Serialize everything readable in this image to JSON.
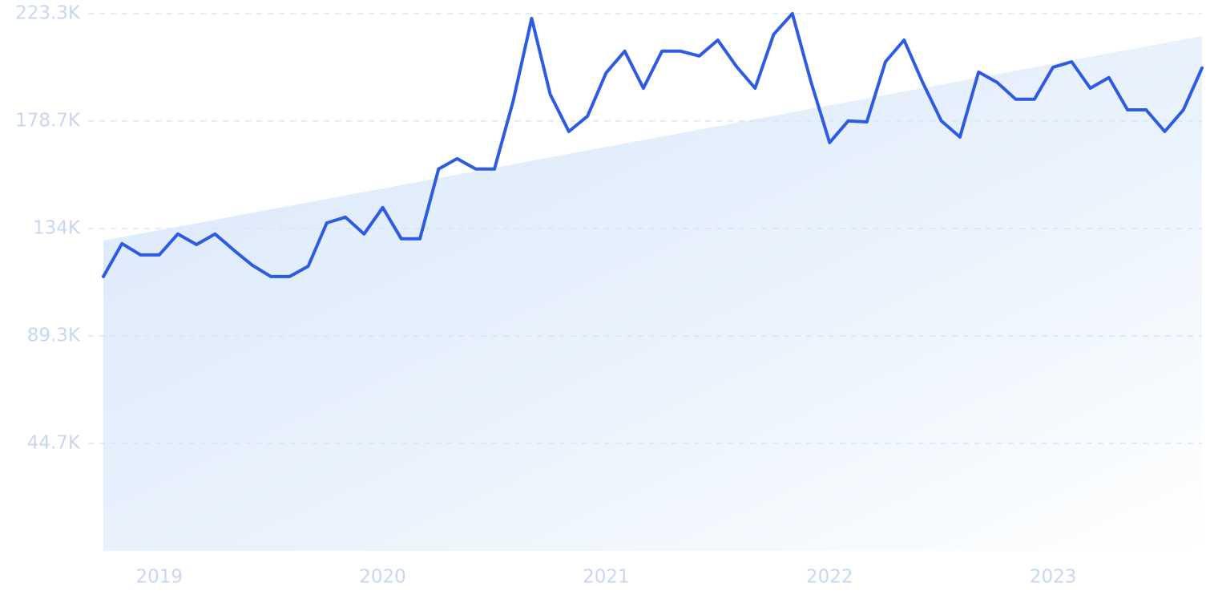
{
  "chart_data": {
    "type": "line",
    "categories": [
      null,
      null,
      null,
      "2019",
      null,
      null,
      null,
      null,
      null,
      null,
      null,
      null,
      null,
      null,
      null,
      "2020",
      null,
      null,
      null,
      null,
      null,
      null,
      null,
      null,
      null,
      null,
      null,
      "2021",
      null,
      null,
      null,
      null,
      null,
      null,
      null,
      null,
      null,
      null,
      null,
      "2022",
      null,
      null,
      null,
      null,
      null,
      null,
      null,
      null,
      null,
      null,
      null,
      "2023",
      null,
      null,
      null,
      null,
      null,
      null,
      null,
      null
    ],
    "values": [
      114000,
      127700,
      123000,
      123000,
      131700,
      127300,
      131700,
      125000,
      118700,
      114000,
      114000,
      118300,
      136300,
      138700,
      131700,
      142700,
      129700,
      129700,
      158700,
      163000,
      158700,
      158700,
      186700,
      221300,
      189700,
      174300,
      180700,
      198700,
      207700,
      192300,
      207700,
      207700,
      205700,
      212300,
      201300,
      192300,
      214700,
      223300,
      195000,
      169700,
      178700,
      178300,
      203300,
      212300,
      194700,
      178700,
      172000,
      199000,
      194700,
      187700,
      187700,
      201000,
      203300,
      192300,
      196700,
      183300,
      183300,
      174300,
      183300,
      200700
    ],
    "color": "#2d5be3",
    "trend": [
      129000,
      214000
    ],
    "ylim": [
      0,
      223300
    ],
    "yticks": [
      {
        "value": 44700,
        "label": "44.7K"
      },
      {
        "value": 89300,
        "label": "89.3K"
      },
      {
        "value": 134000,
        "label": "134K"
      },
      {
        "value": 178700,
        "label": "178.7K"
      },
      {
        "value": 223300,
        "label": "223.3K"
      }
    ],
    "grid": true
  }
}
